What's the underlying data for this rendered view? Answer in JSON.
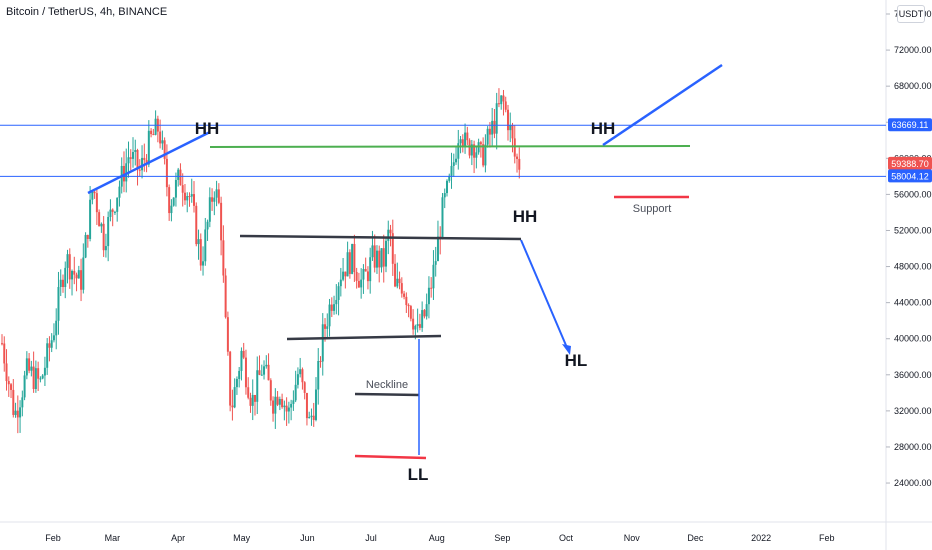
{
  "header": {
    "title": "Bitcoin / TetherUS, 4h, BINANCE",
    "currency": "USDT"
  },
  "colors": {
    "up": "#26a69a",
    "down": "#ef5350",
    "trendline": "#2962ff",
    "neckline": "#363a45",
    "level": "#2962ff",
    "green_line": "#4caf50",
    "support": "#f23645"
  },
  "chart_data": {
    "type": "candlestick",
    "symbol": "Bitcoin / TetherUS",
    "interval": "4h",
    "exchange": "BINANCE",
    "quote": "USDT",
    "ylim": [
      20000,
      78000
    ],
    "y_ticks": [
      24000,
      28000,
      32000,
      36000,
      40000,
      44000,
      48000,
      52000,
      56000,
      60000,
      64000,
      68000,
      72000,
      76000
    ],
    "y_tick_labels": [
      "24000.00",
      "28000.00",
      "32000.00",
      "36000.00",
      "40000.00",
      "44000.00",
      "48000.00",
      "52000.00",
      "56000.00",
      "60000.00",
      "64000.00",
      "68000.00",
      "72000.00",
      "76000.00"
    ],
    "x_ticks": [
      "Feb",
      "Mar",
      "Apr",
      "May",
      "Jun",
      "Jul",
      "Aug",
      "Sep",
      "Oct",
      "Nov",
      "Dec",
      "2022",
      "Feb"
    ],
    "price_path": [
      [
        0,
        39500
      ],
      [
        6,
        31500
      ],
      [
        12,
        36500
      ],
      [
        18,
        35000
      ],
      [
        24,
        40500
      ],
      [
        30,
        49000
      ],
      [
        37,
        46000
      ],
      [
        43,
        57000
      ],
      [
        48,
        51000
      ],
      [
        54,
        56000
      ],
      [
        60,
        60500
      ],
      [
        65,
        58500
      ],
      [
        70,
        62000
      ],
      [
        74,
        63500
      ],
      [
        79,
        55000
      ],
      [
        84,
        58000
      ],
      [
        89,
        55500
      ],
      [
        94,
        48500
      ],
      [
        100,
        57000
      ],
      [
        103,
        54000
      ],
      [
        105,
        43000
      ],
      [
        108,
        32000
      ],
      [
        113,
        38500
      ],
      [
        118,
        33000
      ],
      [
        123,
        37000
      ],
      [
        128,
        33000
      ],
      [
        131,
        34500
      ],
      [
        135,
        31500
      ],
      [
        140,
        36500
      ],
      [
        145,
        30500
      ],
      [
        148,
        33500
      ],
      [
        151,
        40000
      ],
      [
        155,
        44000
      ],
      [
        160,
        47500
      ],
      [
        165,
        49000
      ],
      [
        170,
        46000
      ],
      [
        175,
        49000
      ],
      [
        180,
        48500
      ],
      [
        183,
        52500
      ],
      [
        185,
        45000
      ],
      [
        188,
        46500
      ],
      [
        192,
        44000
      ],
      [
        196,
        40500
      ],
      [
        200,
        43000
      ],
      [
        204,
        48000
      ],
      [
        208,
        54500
      ],
      [
        212,
        58000
      ],
      [
        216,
        64000
      ],
      [
        219,
        61000
      ],
      [
        222,
        62000
      ],
      [
        226,
        60000
      ],
      [
        230,
        62500
      ],
      [
        233,
        64500
      ],
      [
        236,
        66500
      ],
      [
        239,
        64000
      ],
      [
        242,
        60000
      ],
      [
        244,
        59400
      ]
    ],
    "drawings": {
      "resistance_level": 63669.11,
      "support_level": 58004.12,
      "last_price": 59388.7,
      "annotations": [
        "HH",
        "HH",
        "HH",
        "HL",
        "LL",
        "Neckline",
        "Support"
      ]
    }
  },
  "price_labels": {
    "resistance": "63669.11",
    "last": "59388.70",
    "support": "58004.12"
  },
  "annotations": {
    "hh_left": "HH",
    "hh_middle": "HH",
    "hh_right": "HH",
    "hl": "HL",
    "ll": "LL",
    "neckline": "Neckline",
    "support": "Support"
  }
}
